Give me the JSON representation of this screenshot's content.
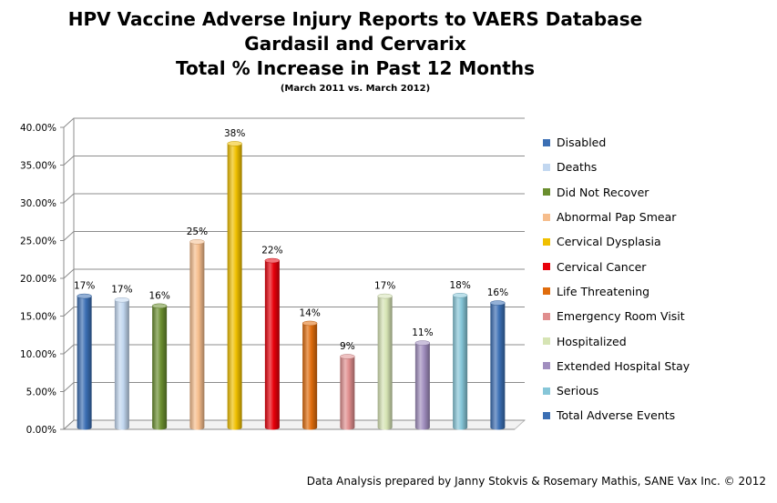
{
  "chart_data": {
    "type": "bar",
    "title": "HPV Vaccine Adverse Injury Reports to VAERS Database",
    "title_line2": "Gardasil and Cervarix",
    "title_line3": "Total % Increase in Past 12 Months",
    "subtitle": "(March 2011 vs. March 2012)",
    "xlabel": "",
    "ylabel": "",
    "ylim": [
      0,
      0.4
    ],
    "y_ticks": [
      "0.00%",
      "5.00%",
      "10.00%",
      "15.00%",
      "20.00%",
      "25.00%",
      "30.00%",
      "35.00%",
      "40.00%"
    ],
    "grid": true,
    "legend_position": "right",
    "series": [
      {
        "name": "Disabled",
        "value": 0.174,
        "label": "17%",
        "color": "#3b6fb4"
      },
      {
        "name": "Deaths",
        "value": 0.169,
        "label": "17%",
        "color": "#c2d7f0"
      },
      {
        "name": "Did Not Recover",
        "value": 0.161,
        "label": "16%",
        "color": "#6a8e2e"
      },
      {
        "name": "Abnormal Pap Smear",
        "value": 0.246,
        "label": "25%",
        "color": "#f6bd8c"
      },
      {
        "name": "Cervical Dysplasia",
        "value": 0.376,
        "label": "38%",
        "color": "#f0c000"
      },
      {
        "name": "Cervical Cancer",
        "value": 0.221,
        "label": "22%",
        "color": "#e8000a"
      },
      {
        "name": "Life Threatening",
        "value": 0.138,
        "label": "14%",
        "color": "#e06c0c"
      },
      {
        "name": "Emergency Room Visit",
        "value": 0.094,
        "label": "9%",
        "color": "#e08e8e"
      },
      {
        "name": "Hospitalized",
        "value": 0.174,
        "label": "17%",
        "color": "#d6e4b4"
      },
      {
        "name": "Extended Hospital Stay",
        "value": 0.112,
        "label": "11%",
        "color": "#a18ebf"
      },
      {
        "name": "Serious",
        "value": 0.175,
        "label": "18%",
        "color": "#86c6d8"
      },
      {
        "name": "Total Adverse Events",
        "value": 0.165,
        "label": "16%",
        "color": "#3b6fb4"
      }
    ]
  },
  "footer": "Data Analysis prepared by Janny Stokvis & Rosemary Mathis, SANE Vax Inc. © 2012"
}
